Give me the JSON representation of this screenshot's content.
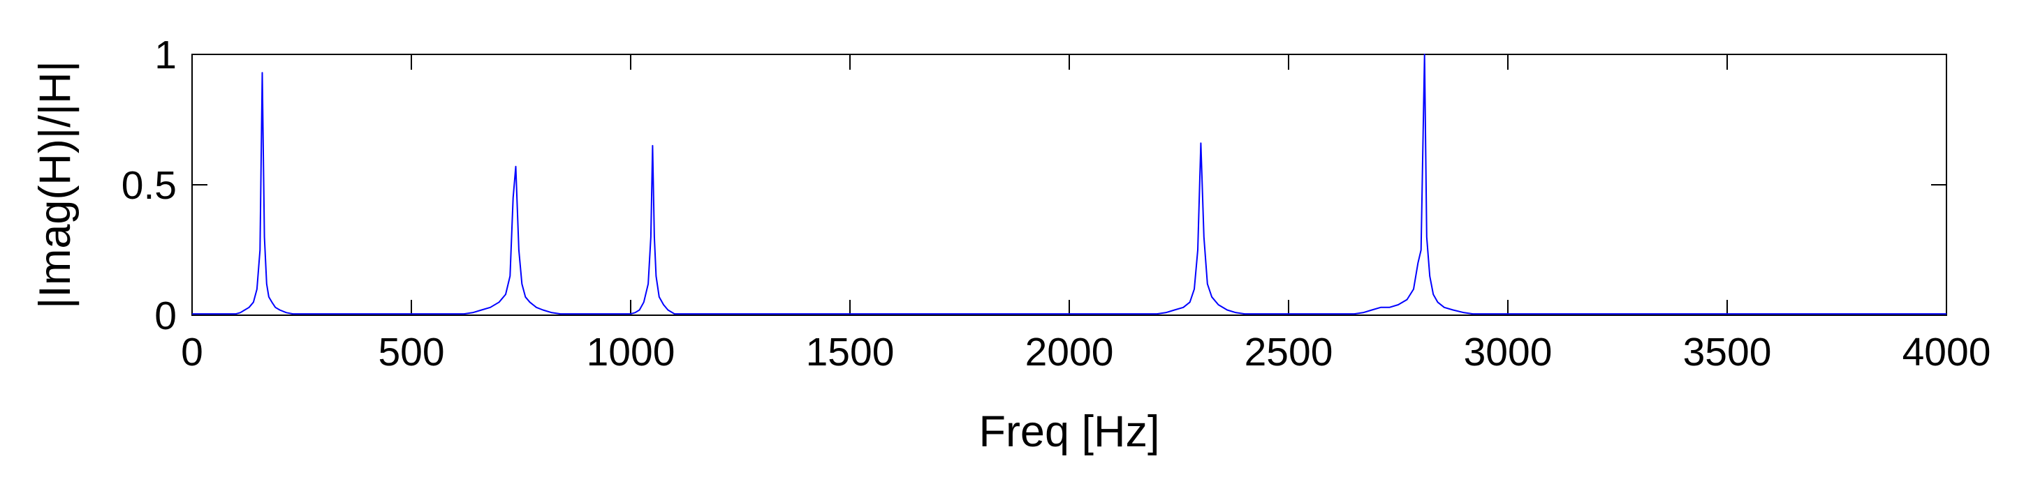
{
  "chart_data": {
    "type": "line",
    "title": "",
    "xlabel": "Freq [Hz]",
    "ylabel": "|Imag(H)|/|H|",
    "xlim": [
      0,
      4000
    ],
    "ylim": [
      0,
      1
    ],
    "xticks": [
      "0",
      "500",
      "1000",
      "1500",
      "2000",
      "2500",
      "3000",
      "3500",
      "4000"
    ],
    "yticks": [
      "0",
      "0.5",
      "1"
    ],
    "grid": false,
    "line_color": "#0000ff",
    "series": [
      {
        "x": [
          0,
          100,
          110,
          120,
          130,
          140,
          148,
          155,
          160,
          165,
          170,
          175,
          182,
          190,
          200,
          215,
          230,
          260,
          280,
          620,
          640,
          660,
          680,
          700,
          715,
          725,
          732,
          738,
          745,
          752,
          760,
          770,
          785,
          800,
          820,
          840,
          1000,
          1010,
          1020,
          1030,
          1040,
          1046,
          1050,
          1054,
          1058,
          1065,
          1075,
          1085,
          1100,
          2200,
          2220,
          2240,
          2260,
          2275,
          2285,
          2293,
          2300,
          2307,
          2315,
          2325,
          2340,
          2360,
          2380,
          2400,
          2650,
          2670,
          2690,
          2710,
          2730,
          2750,
          2770,
          2785,
          2795,
          2802,
          2810,
          2815,
          2822,
          2830,
          2840,
          2855,
          2875,
          2900,
          2920,
          2950,
          2970,
          4000
        ],
        "y": [
          0.005,
          0.005,
          0.01,
          0.02,
          0.03,
          0.05,
          0.1,
          0.25,
          0.93,
          0.3,
          0.12,
          0.07,
          0.05,
          0.03,
          0.02,
          0.01,
          0.005,
          0.005,
          0.005,
          0.005,
          0.01,
          0.02,
          0.03,
          0.05,
          0.08,
          0.15,
          0.45,
          0.57,
          0.25,
          0.12,
          0.07,
          0.05,
          0.03,
          0.02,
          0.01,
          0.005,
          0.005,
          0.01,
          0.02,
          0.05,
          0.12,
          0.3,
          0.65,
          0.3,
          0.15,
          0.07,
          0.04,
          0.02,
          0.005,
          0.005,
          0.01,
          0.02,
          0.03,
          0.05,
          0.1,
          0.25,
          0.66,
          0.3,
          0.12,
          0.07,
          0.04,
          0.02,
          0.01,
          0.005,
          0.005,
          0.01,
          0.02,
          0.03,
          0.03,
          0.04,
          0.06,
          0.1,
          0.2,
          0.25,
          1.0,
          0.3,
          0.15,
          0.08,
          0.05,
          0.03,
          0.02,
          0.01,
          0.005,
          0.005,
          0.005,
          0.005
        ]
      }
    ]
  }
}
